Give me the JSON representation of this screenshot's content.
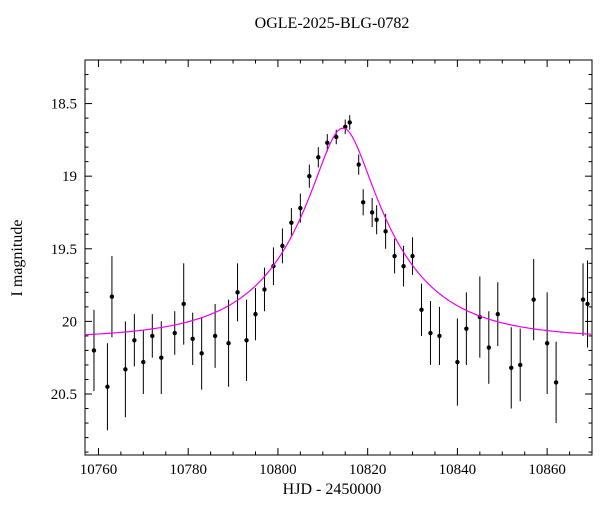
{
  "chart_data": {
    "type": "scatter",
    "title": "OGLE-2025-BLG-0782",
    "xlabel": "HJD - 2450000",
    "ylabel": "I magnitude",
    "xlim": [
      10757,
      10870
    ],
    "ylim": [
      18.2,
      20.92
    ],
    "y_axis_inverted": true,
    "grid": false,
    "legend": "none",
    "x_major_ticks": [
      10760,
      10780,
      10800,
      10820,
      10840,
      10860
    ],
    "x_minor_step": 5,
    "y_major_ticks": [
      18.5,
      19,
      19.5,
      20,
      20.5
    ],
    "y_minor_step": 0.1,
    "point_color": "#000000",
    "model_color": "#ee00ee",
    "points": [
      {
        "x": 10759,
        "mag": 20.2,
        "err": 0.28
      },
      {
        "x": 10762,
        "mag": 20.45,
        "err": 0.3
      },
      {
        "x": 10763,
        "mag": 19.83,
        "err": 0.28
      },
      {
        "x": 10766,
        "mag": 20.33,
        "err": 0.33
      },
      {
        "x": 10768,
        "mag": 20.13,
        "err": 0.18
      },
      {
        "x": 10770,
        "mag": 20.28,
        "err": 0.22
      },
      {
        "x": 10772,
        "mag": 20.1,
        "err": 0.15
      },
      {
        "x": 10774,
        "mag": 20.25,
        "err": 0.25
      },
      {
        "x": 10777,
        "mag": 20.08,
        "err": 0.15
      },
      {
        "x": 10779,
        "mag": 19.88,
        "err": 0.28
      },
      {
        "x": 10781,
        "mag": 20.12,
        "err": 0.18
      },
      {
        "x": 10783,
        "mag": 20.22,
        "err": 0.25
      },
      {
        "x": 10786,
        "mag": 20.1,
        "err": 0.22
      },
      {
        "x": 10789,
        "mag": 20.15,
        "err": 0.3
      },
      {
        "x": 10791,
        "mag": 19.8,
        "err": 0.2
      },
      {
        "x": 10793,
        "mag": 20.13,
        "err": 0.28
      },
      {
        "x": 10795,
        "mag": 19.95,
        "err": 0.18
      },
      {
        "x": 10797,
        "mag": 19.78,
        "err": 0.15
      },
      {
        "x": 10799,
        "mag": 19.62,
        "err": 0.13
      },
      {
        "x": 10801,
        "mag": 19.48,
        "err": 0.12
      },
      {
        "x": 10803,
        "mag": 19.32,
        "err": 0.1
      },
      {
        "x": 10805,
        "mag": 19.22,
        "err": 0.1
      },
      {
        "x": 10807,
        "mag": 19.0,
        "err": 0.08
      },
      {
        "x": 10809,
        "mag": 18.87,
        "err": 0.07
      },
      {
        "x": 10811,
        "mag": 18.77,
        "err": 0.06
      },
      {
        "x": 10813,
        "mag": 18.73,
        "err": 0.05
      },
      {
        "x": 10815,
        "mag": 18.66,
        "err": 0.05
      },
      {
        "x": 10816,
        "mag": 18.63,
        "err": 0.05
      },
      {
        "x": 10818,
        "mag": 18.92,
        "err": 0.07
      },
      {
        "x": 10819,
        "mag": 19.18,
        "err": 0.09
      },
      {
        "x": 10821,
        "mag": 19.25,
        "err": 0.1
      },
      {
        "x": 10822,
        "mag": 19.3,
        "err": 0.1
      },
      {
        "x": 10824,
        "mag": 19.38,
        "err": 0.12
      },
      {
        "x": 10826,
        "mag": 19.55,
        "err": 0.12
      },
      {
        "x": 10828,
        "mag": 19.62,
        "err": 0.14
      },
      {
        "x": 10830,
        "mag": 19.55,
        "err": 0.13
      },
      {
        "x": 10832,
        "mag": 19.92,
        "err": 0.18
      },
      {
        "x": 10834,
        "mag": 20.08,
        "err": 0.22
      },
      {
        "x": 10836,
        "mag": 20.1,
        "err": 0.2
      },
      {
        "x": 10840,
        "mag": 20.28,
        "err": 0.3
      },
      {
        "x": 10842,
        "mag": 20.05,
        "err": 0.25
      },
      {
        "x": 10845,
        "mag": 19.97,
        "err": 0.28
      },
      {
        "x": 10847,
        "mag": 20.18,
        "err": 0.25
      },
      {
        "x": 10849,
        "mag": 19.95,
        "err": 0.22
      },
      {
        "x": 10852,
        "mag": 20.32,
        "err": 0.28
      },
      {
        "x": 10854,
        "mag": 20.3,
        "err": 0.25
      },
      {
        "x": 10857,
        "mag": 19.85,
        "err": 0.28
      },
      {
        "x": 10860,
        "mag": 20.15,
        "err": 0.35
      },
      {
        "x": 10862,
        "mag": 20.42,
        "err": 0.28
      },
      {
        "x": 10868,
        "mag": 19.85,
        "err": 0.25
      },
      {
        "x": 10869,
        "mag": 19.88,
        "err": 0.3
      }
    ],
    "model": {
      "kind": "paczynski-microlensing",
      "t0": 10814.5,
      "tE": 22,
      "u0": 0.27,
      "baseline_mag": 20.12,
      "peak_mag": 18.67
    }
  }
}
